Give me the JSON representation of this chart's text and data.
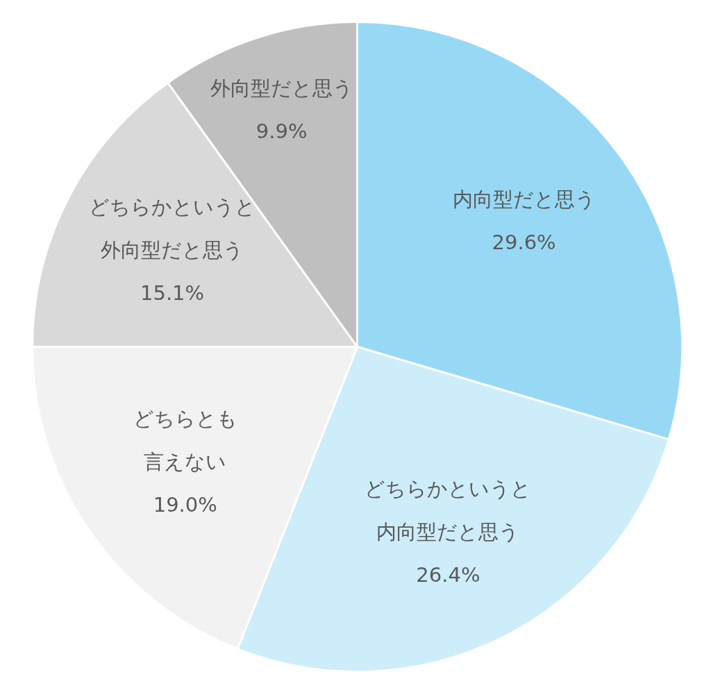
{
  "chart_data": {
    "type": "pie",
    "categories": [
      "内向型だと思う",
      "どちらかというと内向型だと思う",
      "どちらとも言えない",
      "どちらかというと外向型だと思う",
      "外向型だと思う"
    ],
    "values": [
      29.6,
      26.4,
      19.0,
      15.1,
      9.9
    ],
    "value_labels": [
      "29.6%",
      "26.4%",
      "19.0%",
      "15.1%",
      "9.9%"
    ],
    "colors": [
      "#97d9f5",
      "#cdedfb",
      "#f2f2f2",
      "#d9d9d9",
      "#bfbfbf"
    ],
    "legend": false
  }
}
